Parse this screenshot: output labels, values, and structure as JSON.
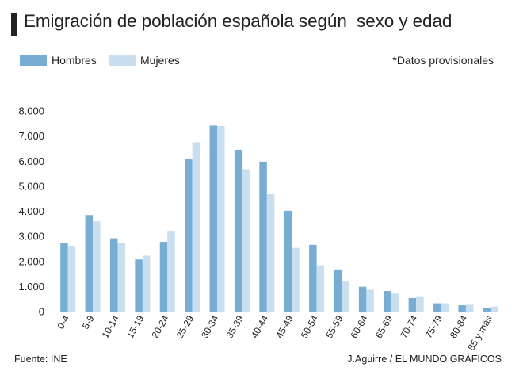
{
  "title": "Emigración de población española según  sexo y edad",
  "note": "*Datos provisionales",
  "source": "Fuente: INE",
  "credit": "J.Aguirre / EL MUNDO GRÁFICOS",
  "colors": {
    "hombres": "#77acd3",
    "mujeres": "#c9dff0",
    "axis": "#222222",
    "text": "#222222"
  },
  "chart_data": {
    "type": "bar",
    "title": "Emigración de población española según  sexo y edad",
    "xlabel": "",
    "ylabel": "",
    "ylim": [
      0,
      8000
    ],
    "yticks": [
      0,
      1000,
      2000,
      3000,
      4000,
      5000,
      6000,
      7000,
      8000
    ],
    "ytick_labels": [
      "0",
      "1.000",
      "2.000",
      "3.000",
      "4.000",
      "5.000",
      "6.000",
      "7.000",
      "8.000"
    ],
    "grid": false,
    "legend": "top-left",
    "categories": [
      "0-4",
      "5-9",
      "10-14",
      "15-19",
      "20-24",
      "25-29",
      "30-34",
      "35-39",
      "40-44",
      "45-49",
      "50-54",
      "55-59",
      "60-64",
      "65-69",
      "70-74",
      "75-79",
      "80-84",
      "85 y más"
    ],
    "series": [
      {
        "name": "Hombres",
        "values": [
          2750,
          3850,
          2920,
          2080,
          2780,
          6080,
          7420,
          6450,
          5980,
          4020,
          2660,
          1680,
          990,
          820,
          540,
          330,
          250,
          130
        ]
      },
      {
        "name": "Mujeres",
        "values": [
          2620,
          3600,
          2750,
          2230,
          3200,
          6750,
          7400,
          5680,
          4680,
          2540,
          1850,
          1200,
          870,
          720,
          580,
          330,
          270,
          200
        ]
      }
    ]
  }
}
